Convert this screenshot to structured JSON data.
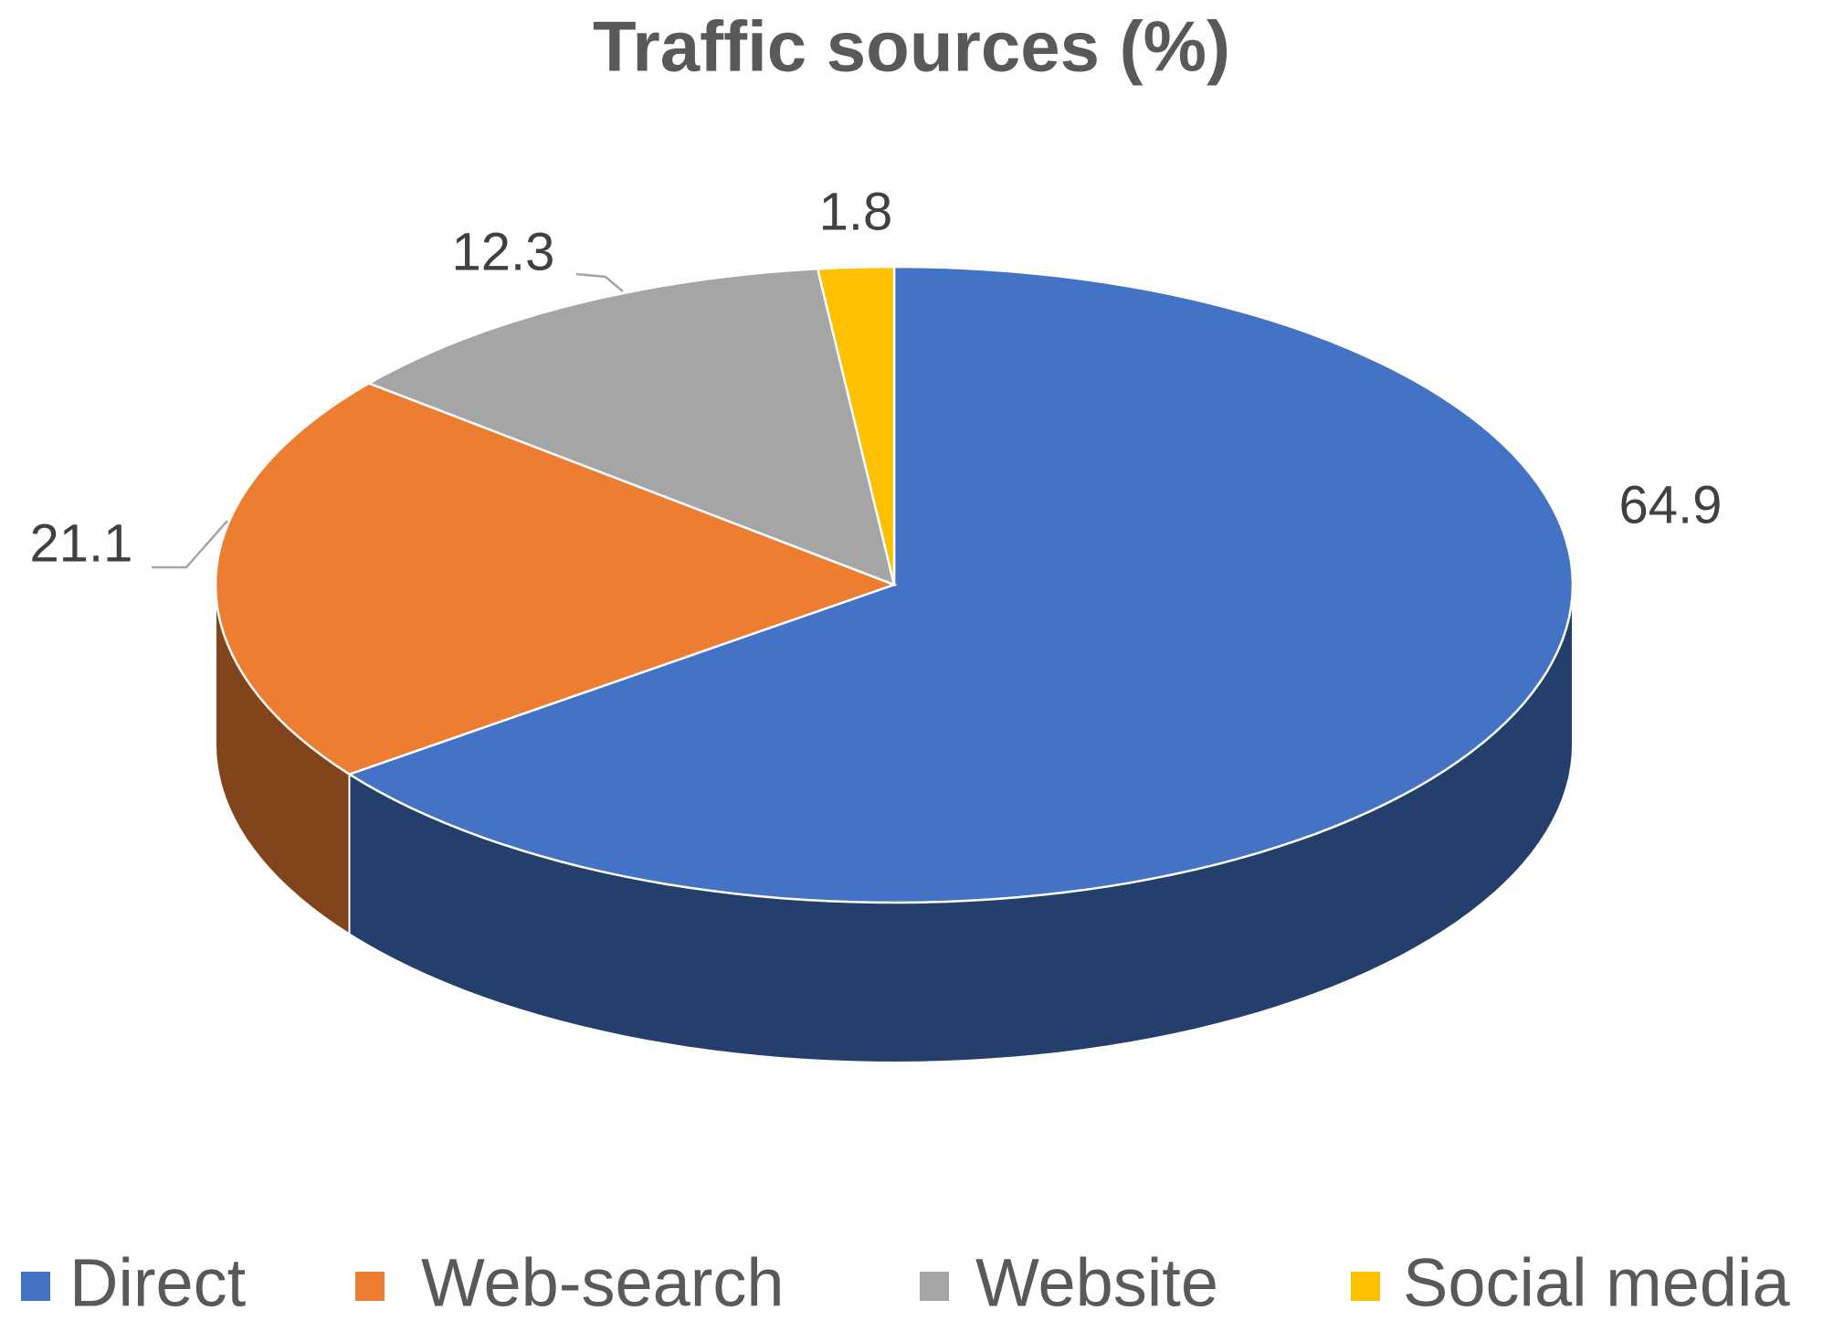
{
  "chart_data": {
    "type": "pie3d",
    "title": "Traffic sources (%)",
    "categories": [
      "Direct",
      "Web-search",
      "Website",
      "Social media"
    ],
    "values": [
      64.9,
      21.1,
      12.3,
      1.8
    ],
    "colors": [
      "#4472c4",
      "#ed7d31",
      "#a5a5a5",
      "#ffc000"
    ],
    "legend": "bottom"
  }
}
